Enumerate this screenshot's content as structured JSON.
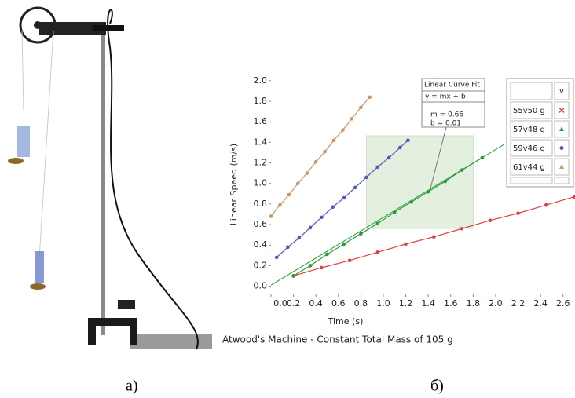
{
  "chart_data": {
    "type": "scatter",
    "title": "Atwood's Machine - Constant Total Mass of 105 g",
    "xlabel": "Time (s)",
    "ylabel": "Linear Speed (m/s)",
    "xlim": [
      0,
      2.7
    ],
    "ylim": [
      -0.08,
      2.06
    ],
    "xticks": [
      {
        "value": 0,
        "label": "0.0"
      },
      {
        "value": 0.2,
        "label": "0.2"
      },
      {
        "value": 0.4,
        "label": "0.4"
      },
      {
        "value": 0.6,
        "label": "0.6"
      },
      {
        "value": 0.8,
        "label": "0.8"
      },
      {
        "value": 1,
        "label": "1.0"
      },
      {
        "value": 1.2,
        "label": "1.2"
      },
      {
        "value": 1.4,
        "label": "1.4"
      },
      {
        "value": 1.6,
        "label": "1.6"
      },
      {
        "value": 1.8,
        "label": "1.8"
      },
      {
        "value": 2,
        "label": "2.0"
      },
      {
        "value": 2.2,
        "label": "2.2"
      },
      {
        "value": 2.4,
        "label": "2.4"
      },
      {
        "value": 2.6,
        "label": "2.6"
      }
    ],
    "yticks": [
      {
        "value": 0,
        "label": "0.0"
      },
      {
        "value": 0.2,
        "label": "0.2"
      },
      {
        "value": 0.4,
        "label": "0.4"
      },
      {
        "value": 0.6,
        "label": "0.6"
      },
      {
        "value": 0.8,
        "label": "0.8"
      },
      {
        "value": 1,
        "label": "1.0"
      },
      {
        "value": 1.2,
        "label": "1.2"
      },
      {
        "value": 1.4,
        "label": "1.4"
      },
      {
        "value": 1.6,
        "label": "1.6"
      },
      {
        "value": 1.8,
        "label": "1.8"
      },
      {
        "value": 2,
        "label": "2.0"
      }
    ],
    "legend_header": "v",
    "series": [
      {
        "name": "55v50 g",
        "color": "#d64545",
        "marker": "bowtie",
        "x": [
          0.2,
          0.45,
          0.7,
          0.95,
          1.2,
          1.45,
          1.7,
          1.95,
          2.2,
          2.45,
          2.7
        ],
        "values": [
          0.1,
          0.18,
          0.25,
          0.33,
          0.41,
          0.48,
          0.56,
          0.64,
          0.71,
          0.79,
          0.87
        ]
      },
      {
        "name": "57v48 g",
        "color": "#2a9a3a",
        "marker": "triangle",
        "x": [
          0.2,
          0.35,
          0.5,
          0.65,
          0.8,
          0.95,
          1.1,
          1.25,
          1.4,
          1.55,
          1.7,
          1.88
        ],
        "values": [
          0.1,
          0.2,
          0.31,
          0.41,
          0.51,
          0.61,
          0.72,
          0.82,
          0.92,
          1.02,
          1.13,
          1.25
        ]
      },
      {
        "name": "59v46 g",
        "color": "#5656b4",
        "marker": "circle",
        "x": [
          0.05,
          0.15,
          0.25,
          0.35,
          0.45,
          0.55,
          0.65,
          0.75,
          0.85,
          0.95,
          1.05,
          1.15,
          1.22
        ],
        "values": [
          0.28,
          0.38,
          0.47,
          0.57,
          0.67,
          0.77,
          0.86,
          0.96,
          1.06,
          1.16,
          1.25,
          1.35,
          1.42
        ]
      },
      {
        "name": "61v44 g",
        "color": "#c9966a",
        "marker": "triangle",
        "x": [
          0,
          0.08,
          0.16,
          0.24,
          0.32,
          0.4,
          0.48,
          0.56,
          0.64,
          0.72,
          0.8,
          0.88
        ],
        "values": [
          0.68,
          0.79,
          0.89,
          1.0,
          1.1,
          1.21,
          1.31,
          1.42,
          1.52,
          1.63,
          1.74,
          1.84
        ]
      }
    ],
    "fit": {
      "title": "Linear Curve Fit",
      "equation": "y = mx + b",
      "m_label": "m = 0.66",
      "b_label": "b = 0.01",
      "m": 0.66,
      "b": 0.01,
      "color": "#2a9a3a",
      "range": [
        0.85,
        1.8
      ]
    }
  },
  "captions": [
    "а)",
    "б)"
  ]
}
